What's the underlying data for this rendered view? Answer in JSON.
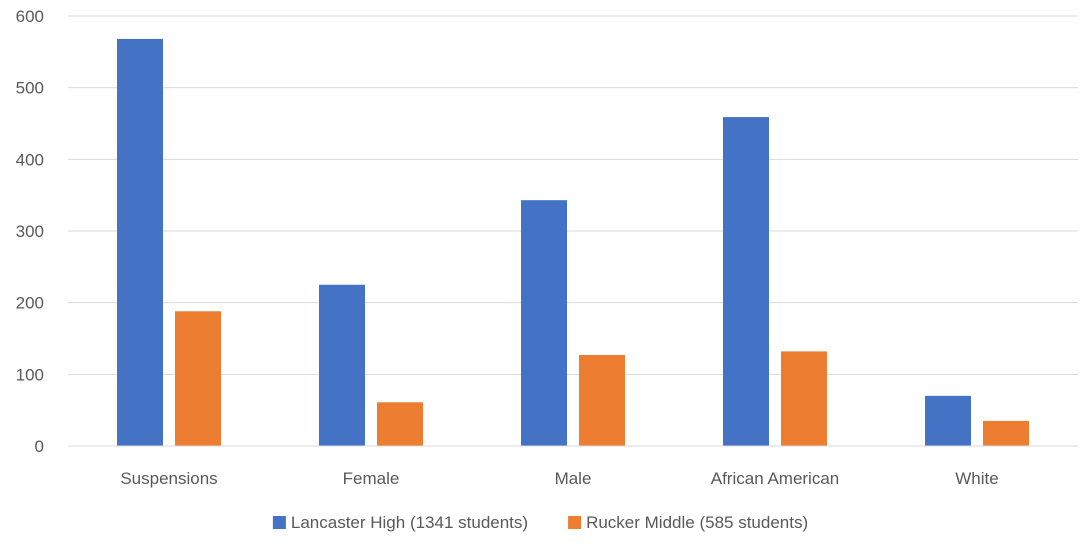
{
  "chart_data": {
    "type": "bar",
    "categories": [
      "Suspensions",
      "Female",
      "Male",
      "African American",
      "White"
    ],
    "series": [
      {
        "name": "Lancaster High (1341 students)",
        "color": "#4472C4",
        "values": [
          568,
          225,
          343,
          459,
          70
        ]
      },
      {
        "name": "Rucker Middle (585 students)",
        "color": "#ED7D31",
        "values": [
          188,
          61,
          127,
          132,
          35
        ]
      }
    ],
    "ylim": [
      0,
      600
    ],
    "yticks": [
      0,
      100,
      200,
      300,
      400,
      500,
      600
    ],
    "grid": true,
    "legend_position": "bottom",
    "title": "",
    "xlabel": "",
    "ylabel": ""
  }
}
